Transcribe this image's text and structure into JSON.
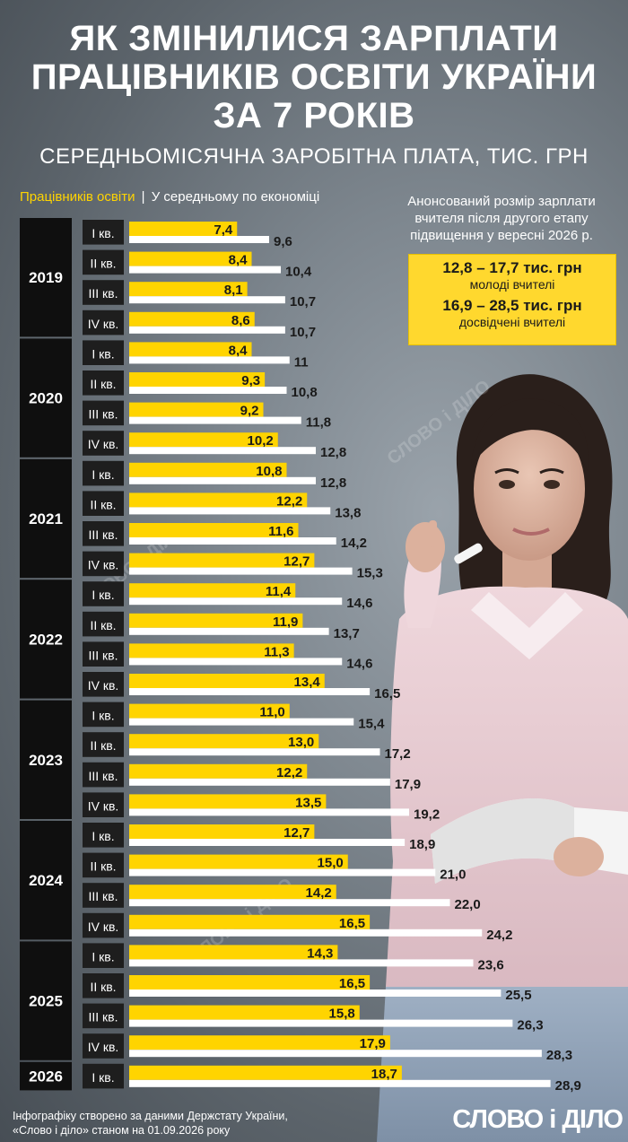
{
  "header": {
    "title_lines": [
      "ЯК ЗМІНИЛИСЯ ЗАРПЛАТИ",
      "ПРАЦІВНИКІВ ОСВІТИ УКРАЇНИ",
      "ЗА 7 РОКІВ"
    ],
    "subtitle": "СЕРЕДНЬОМІСЯЧНА ЗАРОБІТНА ПЛАТА, ТИС. ГРН"
  },
  "legend": {
    "teachers": "Працівників освіти",
    "separator": "|",
    "economy": "У середньому по економіці"
  },
  "announcement": {
    "text": "Анонсований розмір зарплати вчителя після другого етапу підвищення у вересні 2026 р.",
    "young_range": "12,8 – 17,7 тис. грн",
    "young_label": "молоді вчителі",
    "experienced_range": "16,9 – 28,5 тис. грн",
    "experienced_label": "досвідчені вчителі"
  },
  "footer": {
    "source": "Інфографіку створено за даними Держстату України, «Слово і діло» станом на 01.09.2026 року",
    "logo": "СЛОВО і ДІЛО"
  },
  "watermark": "СЛОВО і ДІЛО",
  "colors": {
    "teachers": "#ffd400",
    "economy": "#ffffff",
    "year_block": "#0f0f0f",
    "quarter_block": "#1e1e1e"
  },
  "chart_data": {
    "type": "bar",
    "orientation": "horizontal",
    "unit": "тис. грн",
    "xlim": [
      0,
      29.5
    ],
    "series": [
      {
        "name": "Працівників освіти",
        "values": [
          7.4,
          8.4,
          8.1,
          8.6,
          8.4,
          9.3,
          9.2,
          10.2,
          10.8,
          12.2,
          11.6,
          12.7,
          11.4,
          11.9,
          11.3,
          13.4,
          11.0,
          13.0,
          12.2,
          13.5,
          12.7,
          15.0,
          14.2,
          16.5,
          14.3,
          16.5,
          15.8,
          17.9,
          18.7
        ],
        "labels": [
          "7,4",
          "8,4",
          "8,1",
          "8,6",
          "8,4",
          "9,3",
          "9,2",
          "10,2",
          "10,8",
          "12,2",
          "11,6",
          "12,7",
          "11,4",
          "11,9",
          "11,3",
          "13,4",
          "11,0",
          "13,0",
          "12,2",
          "13,5",
          "12,7",
          "15,0",
          "14,2",
          "16,5",
          "14,3",
          "16,5",
          "15,8",
          "17,9",
          "18,7"
        ]
      },
      {
        "name": "У середньому по економіці",
        "values": [
          9.6,
          10.4,
          10.7,
          10.7,
          11,
          10.8,
          11.8,
          12.8,
          12.8,
          13.8,
          14.2,
          15.3,
          14.6,
          13.7,
          14.6,
          16.5,
          15.4,
          17.2,
          17.9,
          19.2,
          18.9,
          21.0,
          22.0,
          24.2,
          23.6,
          25.5,
          26.3,
          28.3,
          28.9
        ],
        "labels": [
          "9,6",
          "10,4",
          "10,7",
          "10,7",
          "11",
          "10,8",
          "11,8",
          "12,8",
          "12,8",
          "13,8",
          "14,2",
          "15,3",
          "14,6",
          "13,7",
          "14,6",
          "16,5",
          "15,4",
          "17,2",
          "17,9",
          "19,2",
          "18,9",
          "21,0",
          "22,0",
          "24,2",
          "23,6",
          "25,5",
          "26,3",
          "28,3",
          "28,9"
        ]
      }
    ],
    "years": [
      {
        "year": "2019",
        "quarters": 4
      },
      {
        "year": "2020",
        "quarters": 4
      },
      {
        "year": "2021",
        "quarters": 4
      },
      {
        "year": "2022",
        "quarters": 4
      },
      {
        "year": "2023",
        "quarters": 4
      },
      {
        "year": "2024",
        "quarters": 4
      },
      {
        "year": "2025",
        "quarters": 4
      },
      {
        "year": "2026",
        "quarters": 1
      }
    ],
    "quarter_labels": [
      "I кв.",
      "II кв.",
      "III кв.",
      "IV кв."
    ]
  }
}
